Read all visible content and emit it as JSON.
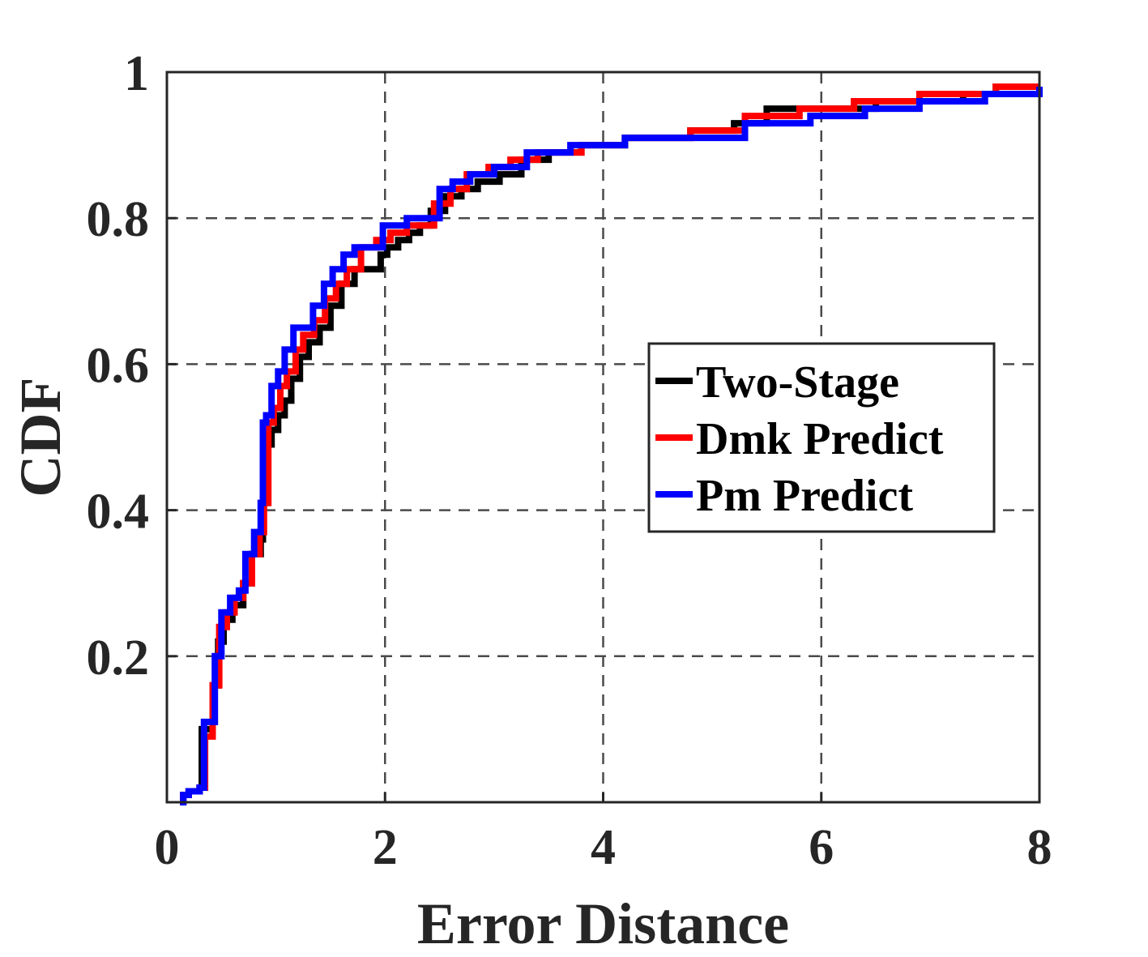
{
  "chart_data": {
    "type": "line",
    "title": "",
    "xlabel": "Error Distance",
    "ylabel": "CDF",
    "xlim": [
      0,
      8
    ],
    "ylim": [
      0,
      1
    ],
    "xticks": [
      0,
      2,
      4,
      6,
      8
    ],
    "xtick_labels": [
      "0",
      "2",
      "4",
      "6",
      "8"
    ],
    "yticks": [
      0.2,
      0.4,
      0.6,
      0.8,
      1
    ],
    "ytick_labels": [
      "0.2",
      "0.4",
      "0.6",
      "0.8",
      "1"
    ],
    "grid": true,
    "legend_position": "center-right",
    "series": [
      {
        "name": "Two-Stage",
        "color": "#000000",
        "x": [
          0.12,
          0.15,
          0.2,
          0.3,
          0.32,
          0.4,
          0.42,
          0.47,
          0.52,
          0.6,
          0.7,
          0.78,
          0.86,
          0.88,
          0.92,
          0.96,
          1.02,
          1.08,
          1.14,
          1.22,
          1.3,
          1.4,
          1.5,
          1.6,
          1.72,
          1.96,
          2.02,
          2.12,
          2.22,
          2.32,
          2.42,
          2.55,
          2.7,
          2.85,
          3.05,
          3.25,
          3.5,
          3.8,
          4.2,
          4.8,
          5.2,
          5.5,
          6.0,
          6.5,
          7.0,
          7.3,
          7.6,
          8.0
        ],
        "y": [
          0.0,
          0.01,
          0.015,
          0.02,
          0.1,
          0.1,
          0.16,
          0.22,
          0.25,
          0.27,
          0.3,
          0.34,
          0.36,
          0.41,
          0.49,
          0.51,
          0.53,
          0.55,
          0.58,
          0.61,
          0.63,
          0.65,
          0.68,
          0.71,
          0.73,
          0.75,
          0.76,
          0.77,
          0.78,
          0.79,
          0.81,
          0.83,
          0.84,
          0.85,
          0.86,
          0.88,
          0.89,
          0.9,
          0.91,
          0.92,
          0.93,
          0.95,
          0.95,
          0.96,
          0.96,
          0.97,
          0.98,
          0.98
        ]
      },
      {
        "name": "Dmk Predict",
        "color": "#ff0000",
        "x": [
          0.12,
          0.15,
          0.2,
          0.3,
          0.35,
          0.42,
          0.48,
          0.55,
          0.62,
          0.7,
          0.78,
          0.85,
          0.89,
          0.93,
          0.98,
          1.04,
          1.1,
          1.18,
          1.25,
          1.35,
          1.45,
          1.55,
          1.65,
          1.78,
          1.92,
          2.05,
          2.2,
          2.35,
          2.45,
          2.6,
          2.75,
          2.95,
          3.15,
          3.4,
          3.8,
          4.2,
          4.8,
          5.3,
          5.8,
          6.3,
          6.9,
          7.3,
          7.6,
          8.0
        ],
        "y": [
          0.0,
          0.01,
          0.015,
          0.02,
          0.09,
          0.16,
          0.24,
          0.26,
          0.28,
          0.3,
          0.34,
          0.37,
          0.41,
          0.52,
          0.54,
          0.57,
          0.59,
          0.62,
          0.64,
          0.66,
          0.69,
          0.71,
          0.73,
          0.76,
          0.77,
          0.78,
          0.79,
          0.79,
          0.82,
          0.84,
          0.86,
          0.87,
          0.88,
          0.89,
          0.9,
          0.91,
          0.92,
          0.94,
          0.95,
          0.96,
          0.97,
          0.97,
          0.98,
          0.98
        ]
      },
      {
        "name": "Pm Predict",
        "color": "#0000ff",
        "x": [
          0.12,
          0.15,
          0.2,
          0.3,
          0.34,
          0.4,
          0.44,
          0.5,
          0.58,
          0.66,
          0.72,
          0.8,
          0.86,
          0.88,
          0.91,
          0.96,
          1.02,
          1.08,
          1.16,
          1.24,
          1.34,
          1.44,
          1.52,
          1.62,
          1.72,
          1.9,
          1.98,
          2.08,
          2.2,
          2.42,
          2.5,
          2.62,
          2.78,
          3.0,
          3.3,
          3.7,
          4.2,
          4.7,
          5.3,
          5.9,
          6.4,
          6.9,
          7.5,
          8.0
        ],
        "y": [
          0.0,
          0.01,
          0.015,
          0.02,
          0.11,
          0.11,
          0.2,
          0.26,
          0.28,
          0.29,
          0.34,
          0.37,
          0.41,
          0.52,
          0.53,
          0.57,
          0.59,
          0.62,
          0.65,
          0.65,
          0.68,
          0.71,
          0.73,
          0.75,
          0.76,
          0.76,
          0.79,
          0.79,
          0.8,
          0.8,
          0.84,
          0.85,
          0.86,
          0.87,
          0.89,
          0.9,
          0.91,
          0.91,
          0.93,
          0.94,
          0.95,
          0.96,
          0.97,
          0.98
        ]
      }
    ]
  }
}
